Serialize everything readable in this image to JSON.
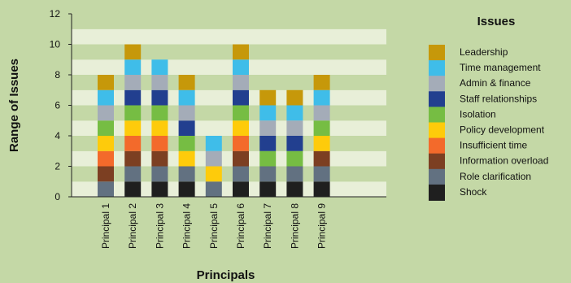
{
  "chart_data": {
    "type": "bar",
    "stacked": true,
    "xlabel": "Principals",
    "ylabel": "Range of Issues",
    "ylim": [
      0,
      12
    ],
    "yticks": [
      0,
      2,
      4,
      6,
      8,
      10,
      12
    ],
    "grid": "alternating horizontal bands",
    "categories": [
      "Principal 1",
      "Principal 2",
      "Principal 3",
      "Principal 4",
      "Principal 5",
      "Principal 6",
      "Principal 7",
      "Principal 8",
      "Principal 9"
    ],
    "legend": {
      "title": "Issues",
      "placement": "right",
      "order": [
        "Leadership",
        "Time management",
        "Admin & finance",
        "Staff relationships",
        "Isolation",
        "Policy development",
        "Insufficient time",
        "Information overload",
        "Role clarification",
        "Shock"
      ]
    },
    "series": [
      {
        "name": "Shock",
        "color": "#1f1f1f",
        "values": [
          0,
          1,
          1,
          1,
          0,
          1,
          1,
          1,
          1
        ]
      },
      {
        "name": "Role clarification",
        "color": "#627181",
        "values": [
          1,
          1,
          1,
          1,
          1,
          1,
          1,
          1,
          1
        ]
      },
      {
        "name": "Information overload",
        "color": "#7c3f22",
        "values": [
          1,
          1,
          1,
          0,
          0,
          1,
          0,
          0,
          1
        ]
      },
      {
        "name": "Insufficient time",
        "color": "#f36a2b",
        "values": [
          1,
          1,
          1,
          0,
          0,
          1,
          0,
          0,
          0
        ]
      },
      {
        "name": "Policy development",
        "color": "#fecb0b",
        "values": [
          1,
          1,
          1,
          1,
          1,
          1,
          0,
          0,
          1
        ]
      },
      {
        "name": "Isolation",
        "color": "#76bd43",
        "values": [
          1,
          1,
          1,
          1,
          0,
          1,
          1,
          1,
          1
        ]
      },
      {
        "name": "Staff relationships",
        "color": "#223f8f",
        "values": [
          0,
          1,
          1,
          1,
          0,
          1,
          1,
          1,
          0
        ]
      },
      {
        "name": "Admin & finance",
        "color": "#a4acb8",
        "values": [
          1,
          1,
          1,
          1,
          1,
          1,
          1,
          1,
          1
        ]
      },
      {
        "name": "Time management",
        "color": "#3fbde9",
        "values": [
          1,
          1,
          1,
          1,
          1,
          1,
          1,
          1,
          1
        ]
      },
      {
        "name": "Leadership",
        "color": "#c6980a",
        "values": [
          1,
          1,
          0,
          1,
          0,
          1,
          1,
          1,
          1
        ]
      }
    ],
    "colors": {
      "background": "#c4d8a6",
      "band_light": "#e8efd8",
      "band_dark": "#c4d8a6"
    }
  }
}
